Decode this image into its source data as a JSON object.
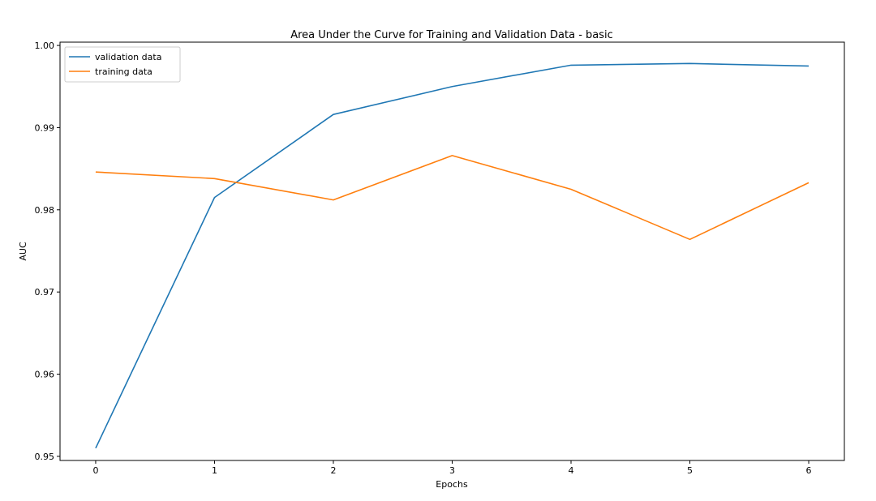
{
  "chart_data": {
    "type": "line",
    "title": "Area Under the Curve for Training and Validation Data - basic",
    "xlabel": "Epochs",
    "ylabel": "AUC",
    "x": [
      0,
      1,
      2,
      3,
      4,
      5,
      6
    ],
    "xticks": [
      "0",
      "1",
      "2",
      "3",
      "4",
      "5",
      "6"
    ],
    "yticks": [
      "0.95",
      "0.96",
      "0.97",
      "0.98",
      "0.99",
      "1.00"
    ],
    "ytick_values": [
      0.95,
      0.96,
      0.97,
      0.98,
      0.99,
      1.0
    ],
    "xlim": [
      -0.3,
      6.3
    ],
    "ylim": [
      0.9495,
      1.0004
    ],
    "grid": false,
    "legend_position": "top-left",
    "series": [
      {
        "name": "validation data",
        "color": "#1f77b4",
        "values": [
          0.951,
          0.9815,
          0.9916,
          0.995,
          0.9976,
          0.9978,
          0.9975
        ]
      },
      {
        "name": "training data",
        "color": "#ff7f0e",
        "values": [
          0.9846,
          0.9838,
          0.9812,
          0.9866,
          0.9825,
          0.9764,
          0.9833
        ]
      }
    ]
  }
}
